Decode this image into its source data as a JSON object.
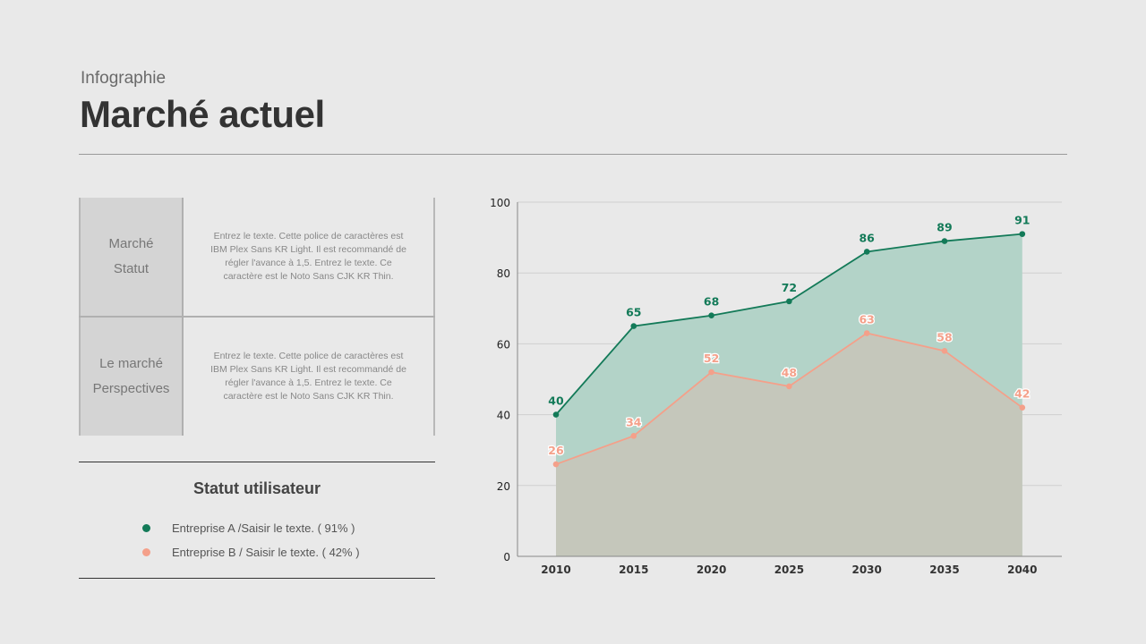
{
  "header": {
    "subtitle": "Infographie",
    "title": "Marché actuel"
  },
  "table": {
    "rows": [
      {
        "label1": "Marché",
        "label2": "Statut",
        "text": "Entrez le texte. Cette police de caractères est IBM Plex Sans KR Light. Il est recommandé de régler l'avance à 1,5. Entrez le texte. Ce caractère est le Noto Sans CJK KR Thin."
      },
      {
        "label1": "Le marché",
        "label2": "Perspectives",
        "text": "Entrez le texte. Cette police de caractères est IBM Plex Sans KR Light. Il est recommandé de régler l'avance à 1,5. Entrez le texte. Ce caractère est le Noto Sans CJK KR Thin."
      }
    ]
  },
  "legend": {
    "title": "Statut utilisateur",
    "items": [
      {
        "label": "Entreprise A /Saisir le texte. ( 91% )",
        "color": "#137a58"
      },
      {
        "label": "Entreprise B / Saisir le texte. ( 42% )",
        "color": "#f4a08a"
      }
    ]
  },
  "chart_data": {
    "type": "area",
    "categories": [
      "2010",
      "2015",
      "2020",
      "2025",
      "2030",
      "2035",
      "2040"
    ],
    "ylim": [
      0,
      100
    ],
    "yticks": [
      0,
      20,
      40,
      60,
      80,
      100
    ],
    "grid": true,
    "series": [
      {
        "values": [
          40,
          65,
          68,
          72,
          86,
          89,
          91
        ],
        "color": "#137a58",
        "fill": "#b3d3c8"
      },
      {
        "values": [
          26,
          34,
          52,
          48,
          63,
          58,
          42
        ],
        "color": "#f4a08a",
        "fill": "#c8c4b8"
      }
    ]
  }
}
